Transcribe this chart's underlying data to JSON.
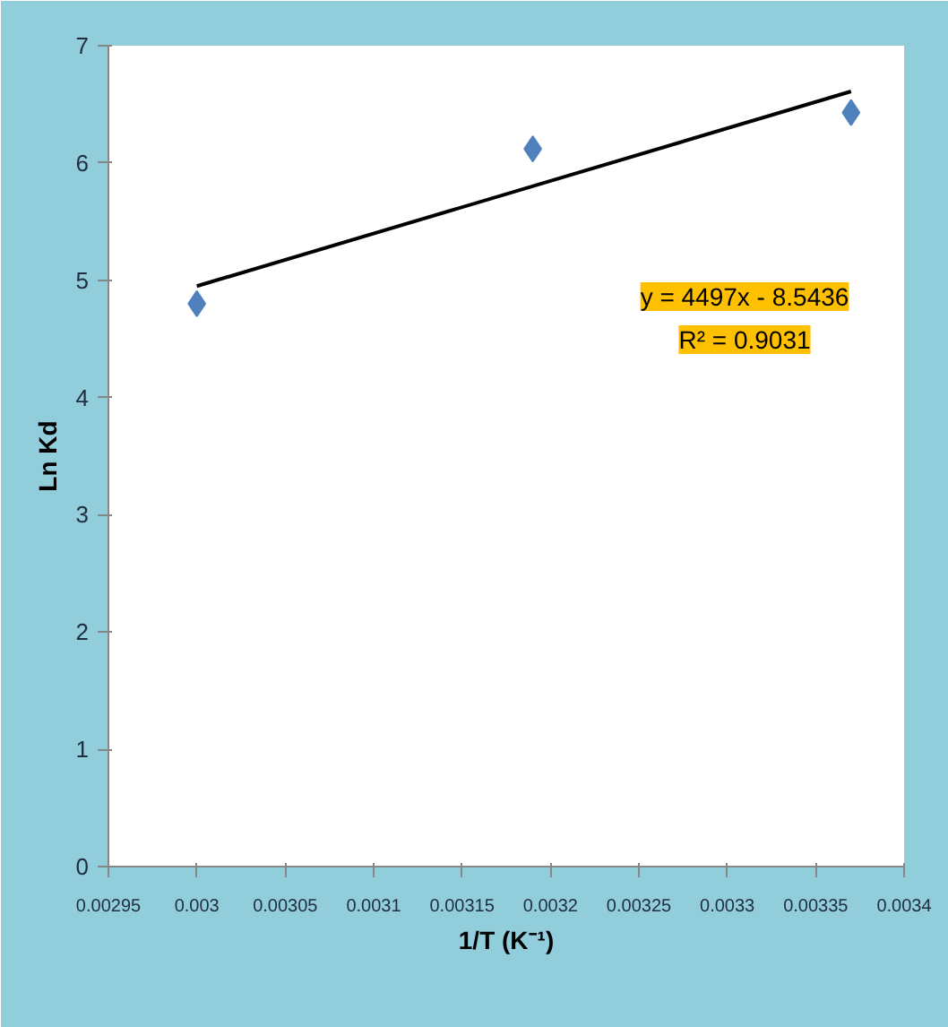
{
  "chart_data": {
    "type": "scatter",
    "xlabel": "1/T (K⁻¹)",
    "ylabel": "Ln Kd",
    "series": [
      {
        "color": "#4f81bd",
        "marker": "diamond",
        "x": [
          0.003,
          0.00319,
          0.00337
        ],
        "values": [
          4.8,
          6.12,
          6.43
        ]
      },
      {
        "type": "line",
        "color": "#000000",
        "x": [
          0.003,
          0.00337
        ],
        "values": [
          4.95,
          6.61
        ]
      }
    ],
    "xlim": [
      0.00295,
      0.0034
    ],
    "xticks": [
      0.00295,
      0.003,
      0.00305,
      0.0031,
      0.00315,
      0.0032,
      0.00325,
      0.0033,
      0.00335,
      0.0034
    ],
    "ylim": [
      0,
      7
    ],
    "yticks": [
      0,
      1,
      2,
      3,
      4,
      5,
      6,
      7
    ],
    "annotations": [
      "y = 4497x - 8.5436",
      "R² = 0.9031"
    ],
    "grid": false
  }
}
